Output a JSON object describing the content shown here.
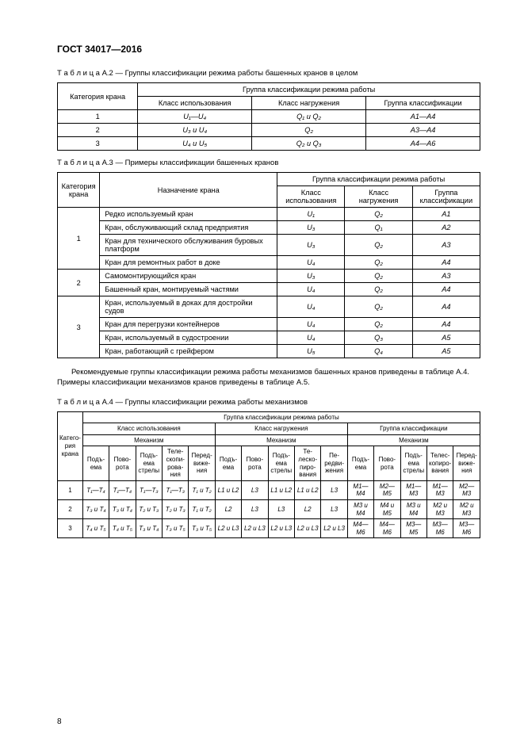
{
  "doc": {
    "standard": "ГОСТ 34017—2016",
    "captionA2": "Т а б л и ц а  А.2 — Группы классификации режима работы башенных кранов в целом",
    "captionA3": "Т а б л и ц а  А.3 — Примеры классификации башенных кранов",
    "captionA4": "Т а б л и ц а  А.4 — Группы классификации режима работы механизмов",
    "midPara": "Рекомендуемые группы классификации режима работы механизмов башенных кранов приведены в табли­це А.4. Примеры классификации механизмов кранов приведены в таблице А.5.",
    "pageNum": "8"
  },
  "tA2": {
    "h_cat": "Категория крана",
    "h_group": "Группа классификации режима работы",
    "h_use": "Класс использования",
    "h_load": "Класс нагружения",
    "h_cls": "Группа классификации",
    "rows": [
      {
        "cat": "1",
        "use": "U₁—U₄",
        "load": "Q₁ и Q₂",
        "cls": "A1—A4"
      },
      {
        "cat": "2",
        "use": "U₃ и U₄",
        "load": "Q₂",
        "cls": "A3—A4"
      },
      {
        "cat": "3",
        "use": "U₄ и U₅",
        "load": "Q₂ и Q₃",
        "cls": "A4—A6"
      }
    ]
  },
  "tA3": {
    "h_cat": "Категория крана",
    "h_purpose": "Назначение крана",
    "h_group": "Группа классификации режима работы",
    "h_use": "Класс использования",
    "h_load": "Класс нагружения",
    "h_cls": "Группа классификации",
    "groups": [
      {
        "cat": "1",
        "rows": [
          {
            "p": "Редко используемый кран",
            "u": "U₁",
            "q": "Q₂",
            "a": "A1"
          },
          {
            "p": "Кран, обслуживающий склад предприятия",
            "u": "U₃",
            "q": "Q₁",
            "a": "A2"
          },
          {
            "p": "Кран для технического обслуживания буро­вых платформ",
            "u": "U₃",
            "q": "Q₂",
            "a": "A3"
          },
          {
            "p": "Кран для ремонтных работ в доке",
            "u": "U₄",
            "q": "Q₂",
            "a": "A4"
          }
        ]
      },
      {
        "cat": "2",
        "rows": [
          {
            "p": "Самомонтирующийся кран",
            "u": "U₃",
            "q": "Q₂",
            "a": "A3"
          },
          {
            "p": "Башенный кран, монтируемый частями",
            "u": "U₄",
            "q": "Q₂",
            "a": "A4"
          }
        ]
      },
      {
        "cat": "3",
        "rows": [
          {
            "p": "Кран, используемый в доках для достройки судов",
            "u": "U₄",
            "q": "Q₂",
            "a": "A4"
          },
          {
            "p": "Кран для перегрузки контейнеров",
            "u": "U₄",
            "q": "Q₂",
            "a": "A4"
          },
          {
            "p": "Кран, используемый в судостроении",
            "u": "U₄",
            "q": "Q₃",
            "a": "A5"
          },
          {
            "p": "Кран, работающий с грейфером",
            "u": "U₅",
            "q": "Q₄",
            "a": "A5"
          }
        ]
      }
    ]
  },
  "tA4": {
    "h_cat": "Катего­рия крана",
    "h_group": "Группа классификации режима работы",
    "h_use": "Класс использования",
    "h_load": "Класс нагружения",
    "h_cls": "Группа классификации",
    "h_mech": "Механизм",
    "mechLabels": [
      "Подъ­ема",
      "Пово­рота",
      "Подъ­ема стрелы",
      "Теле­скопи­рова­ния",
      "Перед­виже­ния"
    ],
    "mechLabelsLoad": [
      "Подъ­ема",
      "Пово­рота",
      "Подъ­ема стрелы",
      "Те­леско­пиро­вания",
      "Пе­редви­жения"
    ],
    "mechLabelsCls": [
      "Подъ­ема",
      "Пово­рота",
      "Подъ­ема стрелы",
      "Телес­копиро­вания",
      "Перед­виже­ния"
    ],
    "rows": [
      {
        "cat": "1",
        "u": [
          "T₁—T₄",
          "T₁—T₄",
          "T₁—T₃",
          "T₁—T₃",
          "T₁ и T₂"
        ],
        "l": [
          "L1 и L2",
          "L3",
          "L1 и L2",
          "L1 и L2",
          "L3"
        ],
        "m": [
          "M1—M4",
          "M2—M5",
          "M1—M3",
          "M1—M3",
          "M2—M3"
        ]
      },
      {
        "cat": "2",
        "u": [
          "T₃ и T₄",
          "T₃ и T₄",
          "T₂ и T₃",
          "T₂ и T₃",
          "T₁ и T₂"
        ],
        "l": [
          "L2",
          "L3",
          "L3",
          "L2",
          "L3"
        ],
        "m": [
          "M3 и M4",
          "M4 и M5",
          "M3 и M4",
          "M2 и M3",
          "M2 и M3"
        ]
      },
      {
        "cat": "3",
        "u": [
          "T₄ и T₅",
          "T₄ и T₅",
          "T₃ и T₄",
          "T₃ и T₅",
          "T₃ и T₅"
        ],
        "l": [
          "L2 и L3",
          "L2 и L3",
          "L2 и L3",
          "L2 и L3",
          "L2 и L3"
        ],
        "m": [
          "M4—M6",
          "M4—M6",
          "M3—M5",
          "M3—M6",
          "M3—M6"
        ]
      }
    ]
  }
}
